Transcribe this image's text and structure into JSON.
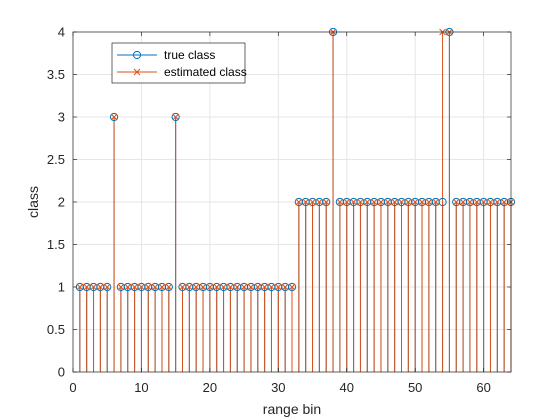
{
  "chart_data": {
    "type": "stem",
    "title": "",
    "xlabel": "range bin",
    "ylabel": "class",
    "xlim": [
      0,
      64
    ],
    "ylim": [
      0,
      4
    ],
    "x_ticks": [
      "0",
      "10",
      "20",
      "30",
      "40",
      "50",
      "60"
    ],
    "y_ticks": [
      "0",
      "0.5",
      "1",
      "1.5",
      "2",
      "2.5",
      "3",
      "3.5",
      "4"
    ],
    "grid": true,
    "legend_position": "top-left",
    "x": [
      1,
      2,
      3,
      4,
      5,
      6,
      7,
      8,
      9,
      10,
      11,
      12,
      13,
      14,
      15,
      16,
      17,
      18,
      19,
      20,
      21,
      22,
      23,
      24,
      25,
      26,
      27,
      28,
      29,
      30,
      31,
      32,
      33,
      34,
      35,
      36,
      37,
      38,
      39,
      40,
      41,
      42,
      43,
      44,
      45,
      46,
      47,
      48,
      49,
      50,
      51,
      52,
      53,
      54,
      55,
      56,
      57,
      58,
      59,
      60,
      61,
      62,
      63,
      64
    ],
    "series": [
      {
        "name": "true class",
        "marker": "o",
        "color": "#0072BD",
        "values": [
          1,
          1,
          1,
          1,
          1,
          3,
          1,
          1,
          1,
          1,
          1,
          1,
          1,
          1,
          3,
          1,
          1,
          1,
          1,
          1,
          1,
          1,
          1,
          1,
          1,
          1,
          1,
          1,
          1,
          1,
          1,
          1,
          2,
          2,
          2,
          2,
          2,
          4,
          2,
          2,
          2,
          2,
          2,
          2,
          2,
          2,
          2,
          2,
          2,
          2,
          2,
          2,
          2,
          2,
          4,
          2,
          2,
          2,
          2,
          2,
          2,
          2,
          2,
          2
        ]
      },
      {
        "name": "estimated class",
        "marker": "x",
        "color": "#D95319",
        "values": [
          1,
          1,
          1,
          1,
          1,
          3,
          1,
          1,
          1,
          1,
          1,
          1,
          1,
          1,
          3,
          1,
          1,
          1,
          1,
          1,
          1,
          1,
          1,
          1,
          1,
          1,
          1,
          1,
          1,
          1,
          1,
          1,
          2,
          2,
          2,
          2,
          2,
          4,
          2,
          2,
          2,
          2,
          2,
          2,
          2,
          2,
          2,
          2,
          2,
          2,
          2,
          2,
          2,
          4,
          4,
          2,
          2,
          2,
          2,
          2,
          2,
          2,
          2,
          2
        ]
      }
    ]
  }
}
